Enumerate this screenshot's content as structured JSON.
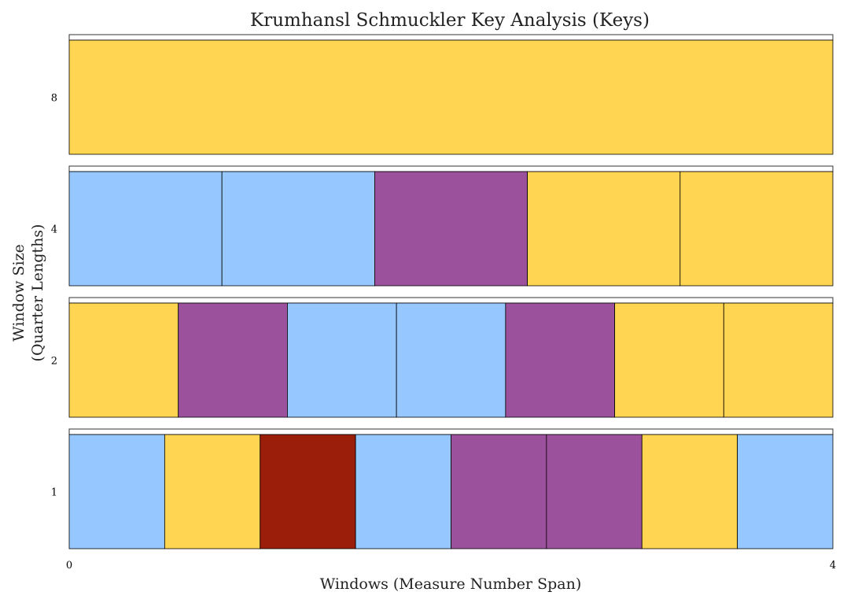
{
  "chart_data": {
    "type": "heatmap",
    "title": "Krumhansl Schmuckler Key Analysis (Keys)",
    "xlabel": "Windows (Measure Number Span)",
    "ylabel": [
      "Window Size",
      "(Quarter Lengths)"
    ],
    "xlim": [
      0,
      4
    ],
    "x_ticks": [
      "0",
      "4"
    ],
    "grid": false,
    "legend": "none",
    "colors": {
      "yellow": "#FFD551",
      "blue": "#96C8FF",
      "purple": "#9B519B",
      "red": "#9A1E0A",
      "edge": "#000000"
    },
    "rows": [
      {
        "window_size": "8",
        "segments": [
          "yellow"
        ]
      },
      {
        "window_size": "4",
        "segments": [
          "blue",
          "blue",
          "purple",
          "yellow",
          "yellow"
        ]
      },
      {
        "window_size": "2",
        "segments": [
          "yellow",
          "purple",
          "blue",
          "blue",
          "purple",
          "yellow",
          "yellow"
        ]
      },
      {
        "window_size": "1",
        "segments": [
          "blue",
          "yellow",
          "red",
          "blue",
          "purple",
          "purple",
          "yellow",
          "blue"
        ]
      }
    ]
  }
}
